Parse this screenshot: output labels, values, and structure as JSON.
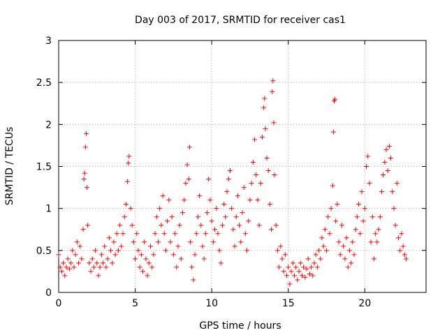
{
  "chart_data": {
    "type": "scatter",
    "title": "Day 003 of 2017, SRMTID for receiver cas1",
    "xlabel": "GPS time / hours",
    "ylabel": "SRMTID / TECUs",
    "xlim": [
      0,
      24
    ],
    "ylim": [
      0,
      3
    ],
    "xticks": [
      "0",
      "5",
      "10",
      "15",
      "20"
    ],
    "yticks": [
      "0",
      "0.5",
      "1",
      "1.5",
      "2",
      "2.5",
      "3"
    ],
    "grid": true,
    "marker": "+",
    "color": "#ff0000",
    "series": [
      {
        "name": "SRMTID",
        "points": [
          [
            0.0,
            0.45
          ],
          [
            0.1,
            0.3
          ],
          [
            0.2,
            0.25
          ],
          [
            0.3,
            0.35
          ],
          [
            0.4,
            0.2
          ],
          [
            0.5,
            0.3
          ],
          [
            0.6,
            0.4
          ],
          [
            0.7,
            0.28
          ],
          [
            0.8,
            0.35
          ],
          [
            0.9,
            0.5
          ],
          [
            1.0,
            0.3
          ],
          [
            1.1,
            0.45
          ],
          [
            1.2,
            0.6
          ],
          [
            1.3,
            0.35
          ],
          [
            1.4,
            0.55
          ],
          [
            1.5,
            0.4
          ],
          [
            1.6,
            0.75
          ],
          [
            1.65,
            1.35
          ],
          [
            1.7,
            1.42
          ],
          [
            1.75,
            1.73
          ],
          [
            1.8,
            1.89
          ],
          [
            1.85,
            1.25
          ],
          [
            1.9,
            0.8
          ],
          [
            2.0,
            0.35
          ],
          [
            2.1,
            0.25
          ],
          [
            2.2,
            0.4
          ],
          [
            2.3,
            0.3
          ],
          [
            2.4,
            0.5
          ],
          [
            2.5,
            0.35
          ],
          [
            2.6,
            0.2
          ],
          [
            2.7,
            0.3
          ],
          [
            2.8,
            0.45
          ],
          [
            2.9,
            0.35
          ],
          [
            3.0,
            0.55
          ],
          [
            3.1,
            0.3
          ],
          [
            3.2,
            0.4
          ],
          [
            3.3,
            0.65
          ],
          [
            3.4,
            0.5
          ],
          [
            3.5,
            0.35
          ],
          [
            3.6,
            0.6
          ],
          [
            3.7,
            0.45
          ],
          [
            3.8,
            0.7
          ],
          [
            3.9,
            0.5
          ],
          [
            4.0,
            0.8
          ],
          [
            4.1,
            0.55
          ],
          [
            4.2,
            0.7
          ],
          [
            4.3,
            0.9
          ],
          [
            4.4,
            1.05
          ],
          [
            4.5,
            1.32
          ],
          [
            4.55,
            1.54
          ],
          [
            4.6,
            1.62
          ],
          [
            4.7,
            1.0
          ],
          [
            4.8,
            0.8
          ],
          [
            4.9,
            0.6
          ],
          [
            5.0,
            0.4
          ],
          [
            5.1,
            0.7
          ],
          [
            5.2,
            0.5
          ],
          [
            5.3,
            0.3
          ],
          [
            5.4,
            0.45
          ],
          [
            5.5,
            0.25
          ],
          [
            5.6,
            0.6
          ],
          [
            5.7,
            0.4
          ],
          [
            5.8,
            0.2
          ],
          [
            5.9,
            0.35
          ],
          [
            6.0,
            0.55
          ],
          [
            6.1,
            0.3
          ],
          [
            6.2,
            0.45
          ],
          [
            6.3,
            0.7
          ],
          [
            6.4,
            0.9
          ],
          [
            6.5,
            0.6
          ],
          [
            6.6,
            1.0
          ],
          [
            6.7,
            0.8
          ],
          [
            6.8,
            1.15
          ],
          [
            6.9,
            0.7
          ],
          [
            7.0,
            0.5
          ],
          [
            7.1,
            0.85
          ],
          [
            7.2,
            1.1
          ],
          [
            7.3,
            0.6
          ],
          [
            7.4,
            0.9
          ],
          [
            7.5,
            0.45
          ],
          [
            7.6,
            0.7
          ],
          [
            7.7,
            0.3
          ],
          [
            7.8,
            0.55
          ],
          [
            7.9,
            0.8
          ],
          [
            8.0,
            0.4
          ],
          [
            8.1,
            0.95
          ],
          [
            8.2,
            1.1
          ],
          [
            8.3,
            1.3
          ],
          [
            8.4,
            1.52
          ],
          [
            8.5,
            1.35
          ],
          [
            8.55,
            1.73
          ],
          [
            8.6,
            0.6
          ],
          [
            8.7,
            0.3
          ],
          [
            8.8,
            0.15
          ],
          [
            8.9,
            0.45
          ],
          [
            9.0,
            0.7
          ],
          [
            9.1,
            0.9
          ],
          [
            9.2,
            1.15
          ],
          [
            9.3,
            0.8
          ],
          [
            9.4,
            0.55
          ],
          [
            9.5,
            0.4
          ],
          [
            9.6,
            0.7
          ],
          [
            9.7,
            0.95
          ],
          [
            9.8,
            1.35
          ],
          [
            9.9,
            1.1
          ],
          [
            10.0,
            0.85
          ],
          [
            10.1,
            0.6
          ],
          [
            10.2,
            0.75
          ],
          [
            10.3,
            1.0
          ],
          [
            10.4,
            0.7
          ],
          [
            10.5,
            0.5
          ],
          [
            10.6,
            0.35
          ],
          [
            10.7,
            0.8
          ],
          [
            10.8,
            1.05
          ],
          [
            10.9,
            0.9
          ],
          [
            11.0,
            1.2
          ],
          [
            11.1,
            1.35
          ],
          [
            11.2,
            1.45
          ],
          [
            11.3,
            1.0
          ],
          [
            11.4,
            0.75
          ],
          [
            11.5,
            0.55
          ],
          [
            11.6,
            0.9
          ],
          [
            11.7,
            1.15
          ],
          [
            11.8,
            0.8
          ],
          [
            11.9,
            0.6
          ],
          [
            12.0,
            0.95
          ],
          [
            12.1,
            1.25
          ],
          [
            12.2,
            0.7
          ],
          [
            12.3,
            0.5
          ],
          [
            12.4,
            0.85
          ],
          [
            12.5,
            1.1
          ],
          [
            12.6,
            1.3
          ],
          [
            12.7,
            1.55
          ],
          [
            12.8,
            1.82
          ],
          [
            12.9,
            1.4
          ],
          [
            13.0,
            1.1
          ],
          [
            13.1,
            0.8
          ],
          [
            13.2,
            1.3
          ],
          [
            13.3,
            1.85
          ],
          [
            13.4,
            2.2
          ],
          [
            13.45,
            2.31
          ],
          [
            13.5,
            1.95
          ],
          [
            13.6,
            1.6
          ],
          [
            13.7,
            1.45
          ],
          [
            13.8,
            1.05
          ],
          [
            13.9,
            0.75
          ],
          [
            13.95,
            2.39
          ],
          [
            14.0,
            2.52
          ],
          [
            14.05,
            2.02
          ],
          [
            14.1,
            1.4
          ],
          [
            14.2,
            0.8
          ],
          [
            14.3,
            0.5
          ],
          [
            14.4,
            0.3
          ],
          [
            14.5,
            0.55
          ],
          [
            14.6,
            0.4
          ],
          [
            14.7,
            0.25
          ],
          [
            14.8,
            0.45
          ],
          [
            14.9,
            0.2
          ],
          [
            15.0,
            0.3
          ],
          [
            15.1,
            0.1
          ],
          [
            15.2,
            0.25
          ],
          [
            15.3,
            0.35
          ],
          [
            15.4,
            0.2
          ],
          [
            15.5,
            0.3
          ],
          [
            15.6,
            0.15
          ],
          [
            15.7,
            0.25
          ],
          [
            15.8,
            0.35
          ],
          [
            15.9,
            0.2
          ],
          [
            16.0,
            0.3
          ],
          [
            16.1,
            0.18
          ],
          [
            16.2,
            0.28
          ],
          [
            16.3,
            0.4
          ],
          [
            16.4,
            0.22
          ],
          [
            16.5,
            0.3
          ],
          [
            16.6,
            0.2
          ],
          [
            16.7,
            0.35
          ],
          [
            16.8,
            0.45
          ],
          [
            16.9,
            0.3
          ],
          [
            17.0,
            0.5
          ],
          [
            17.1,
            0.4
          ],
          [
            17.2,
            0.65
          ],
          [
            17.3,
            0.55
          ],
          [
            17.4,
            0.75
          ],
          [
            17.5,
            0.5
          ],
          [
            17.6,
            0.9
          ],
          [
            17.7,
            0.7
          ],
          [
            17.8,
            1.0
          ],
          [
            17.9,
            1.27
          ],
          [
            17.95,
            1.91
          ],
          [
            18.0,
            2.28
          ],
          [
            18.05,
            2.3
          ],
          [
            18.1,
            0.85
          ],
          [
            18.2,
            1.05
          ],
          [
            18.3,
            0.6
          ],
          [
            18.4,
            0.45
          ],
          [
            18.5,
            0.8
          ],
          [
            18.6,
            0.55
          ],
          [
            18.7,
            0.4
          ],
          [
            18.8,
            0.65
          ],
          [
            18.9,
            0.3
          ],
          [
            19.0,
            0.5
          ],
          [
            19.1,
            0.35
          ],
          [
            19.2,
            0.6
          ],
          [
            19.3,
            0.45
          ],
          [
            19.4,
            0.75
          ],
          [
            19.5,
            0.9
          ],
          [
            19.6,
            1.05
          ],
          [
            19.7,
            0.7
          ],
          [
            19.8,
            1.2
          ],
          [
            19.9,
            0.85
          ],
          [
            20.0,
            1.0
          ],
          [
            20.1,
            1.5
          ],
          [
            20.2,
            1.62
          ],
          [
            20.3,
            1.3
          ],
          [
            20.4,
            0.6
          ],
          [
            20.5,
            0.9
          ],
          [
            20.6,
            0.4
          ],
          [
            20.7,
            0.7
          ],
          [
            20.8,
            0.6
          ],
          [
            20.9,
            0.75
          ],
          [
            21.0,
            0.9
          ],
          [
            21.1,
            1.2
          ],
          [
            21.2,
            1.4
          ],
          [
            21.3,
            1.55
          ],
          [
            21.4,
            1.7
          ],
          [
            21.5,
            1.45
          ],
          [
            21.6,
            1.74
          ],
          [
            21.7,
            1.6
          ],
          [
            21.8,
            1.2
          ],
          [
            21.9,
            1.0
          ],
          [
            22.0,
            0.8
          ],
          [
            22.1,
            1.3
          ],
          [
            22.2,
            0.65
          ],
          [
            22.3,
            0.5
          ],
          [
            22.4,
            0.7
          ],
          [
            22.5,
            0.55
          ],
          [
            22.6,
            0.45
          ],
          [
            22.7,
            0.4
          ]
        ]
      }
    ]
  }
}
